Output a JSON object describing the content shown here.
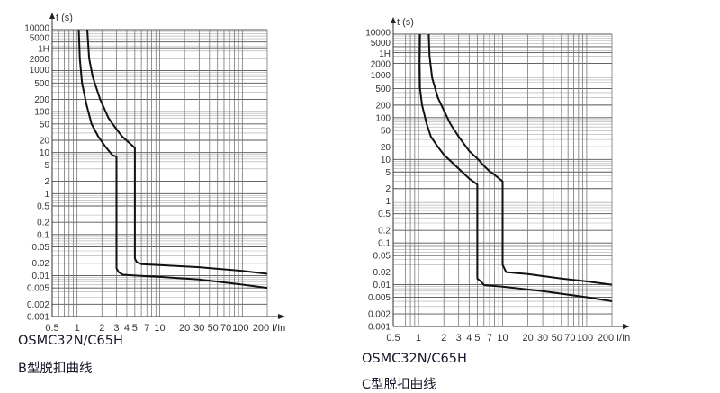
{
  "chart_data": [
    {
      "type": "line",
      "title": "B型脱扣曲线",
      "model": "OSMC32N/C65H",
      "xlabel": "I/In",
      "ylabel": "t (s)",
      "xscale": "log",
      "yscale": "log",
      "xlim": [
        0.5,
        200
      ],
      "ylim": [
        0.001,
        10000
      ],
      "grid": true,
      "x_ticks": [
        "0.5",
        "1",
        "2",
        "3",
        "4",
        "5",
        "7",
        "10",
        "20",
        "30",
        "50",
        "70",
        "100",
        "200"
      ],
      "x_tick_values": [
        0.5,
        1,
        2,
        3,
        4,
        5,
        7,
        10,
        20,
        30,
        50,
        70,
        100,
        200
      ],
      "y_ticks": [
        "10000",
        "5000",
        "1H",
        "2000",
        "1000",
        "500",
        "200",
        "100",
        "50",
        "20",
        "10",
        "5",
        "2",
        "1",
        "0.5",
        "0.2",
        "0.1",
        "0.05",
        "0.02",
        "0.01",
        "0.005",
        "0.002",
        "0.001"
      ],
      "y_tick_values": [
        10000,
        5000,
        3600,
        2000,
        1000,
        500,
        200,
        100,
        50,
        20,
        10,
        5,
        2,
        1,
        0.5,
        0.2,
        0.1,
        0.05,
        0.02,
        0.01,
        0.005,
        0.002,
        0.001
      ],
      "series": [
        {
          "name": "lower",
          "points": [
            [
              1.05,
              10000
            ],
            [
              1.08,
              2000
            ],
            [
              1.15,
              500
            ],
            [
              1.3,
              150
            ],
            [
              1.5,
              50
            ],
            [
              1.8,
              25
            ],
            [
              2.2,
              14
            ],
            [
              2.7,
              8.5
            ],
            [
              3,
              8
            ],
            [
              3,
              0.015
            ],
            [
              3.2,
              0.012
            ],
            [
              3.6,
              0.0105
            ],
            [
              5,
              0.01
            ],
            [
              10,
              0.0093
            ],
            [
              30,
              0.008
            ],
            [
              100,
              0.006
            ],
            [
              200,
              0.005
            ]
          ]
        },
        {
          "name": "upper",
          "points": [
            [
              1.33,
              10000
            ],
            [
              1.4,
              2000
            ],
            [
              1.55,
              700
            ],
            [
              1.9,
              200
            ],
            [
              2.4,
              70
            ],
            [
              2.8,
              45
            ],
            [
              3.5,
              25
            ],
            [
              5,
              13
            ],
            [
              5,
              0.026
            ],
            [
              5.3,
              0.021
            ],
            [
              6,
              0.019
            ],
            [
              10,
              0.018
            ],
            [
              30,
              0.016
            ],
            [
              100,
              0.013
            ],
            [
              200,
              0.011
            ]
          ]
        }
      ]
    },
    {
      "type": "line",
      "title": "C型脱扣曲线",
      "model": "OSMC32N/C65H",
      "xlabel": "I/In",
      "ylabel": "t (s)",
      "xscale": "log",
      "yscale": "log",
      "xlim": [
        0.5,
        200
      ],
      "ylim": [
        0.001,
        10000
      ],
      "grid": true,
      "x_ticks": [
        "0.5",
        "1",
        "2",
        "3",
        "4",
        "5",
        "7",
        "10",
        "20",
        "30",
        "50",
        "70",
        "100",
        "200"
      ],
      "x_tick_values": [
        0.5,
        1,
        2,
        3,
        4,
        5,
        7,
        10,
        20,
        30,
        50,
        70,
        100,
        200
      ],
      "y_ticks": [
        "10000",
        "5000",
        "1H",
        "2000",
        "1000",
        "500",
        "200",
        "100",
        "50",
        "20",
        "10",
        "5",
        "2",
        "1",
        "0.5",
        "0.2",
        "0.1",
        "0.05",
        "0.02",
        "0.01",
        "0.005",
        "0.002",
        "0.001"
      ],
      "y_tick_values": [
        10000,
        5000,
        3600,
        2000,
        1000,
        500,
        200,
        100,
        50,
        20,
        10,
        5,
        2,
        1,
        0.5,
        0.2,
        0.1,
        0.05,
        0.02,
        0.01,
        0.005,
        0.002,
        0.001
      ],
      "series": [
        {
          "name": "lower",
          "points": [
            [
              1.04,
              10000
            ],
            [
              1.03,
              2000
            ],
            [
              1.04,
              500
            ],
            [
              1.1,
              200
            ],
            [
              1.25,
              70
            ],
            [
              1.4,
              35
            ],
            [
              1.7,
              20
            ],
            [
              2,
              13
            ],
            [
              3,
              6
            ],
            [
              4,
              3.5
            ],
            [
              5,
              2.5
            ],
            [
              5,
              0.014
            ],
            [
              5.5,
              0.012
            ],
            [
              6,
              0.0098
            ],
            [
              10,
              0.009
            ],
            [
              30,
              0.007
            ],
            [
              100,
              0.005
            ],
            [
              200,
              0.004
            ]
          ]
        },
        {
          "name": "upper",
          "points": [
            [
              1.32,
              10000
            ],
            [
              1.35,
              3000
            ],
            [
              1.45,
              900
            ],
            [
              1.7,
              300
            ],
            [
              2,
              150
            ],
            [
              2.4,
              70
            ],
            [
              3,
              35
            ],
            [
              4,
              16
            ],
            [
              5,
              10.5
            ],
            [
              6,
              7
            ],
            [
              7,
              5.2
            ],
            [
              8,
              4.3
            ],
            [
              10,
              3
            ],
            [
              10,
              0.03
            ],
            [
              11,
              0.02
            ],
            [
              20,
              0.018
            ],
            [
              50,
              0.014
            ],
            [
              100,
              0.012
            ],
            [
              200,
              0.01
            ]
          ]
        }
      ]
    }
  ]
}
